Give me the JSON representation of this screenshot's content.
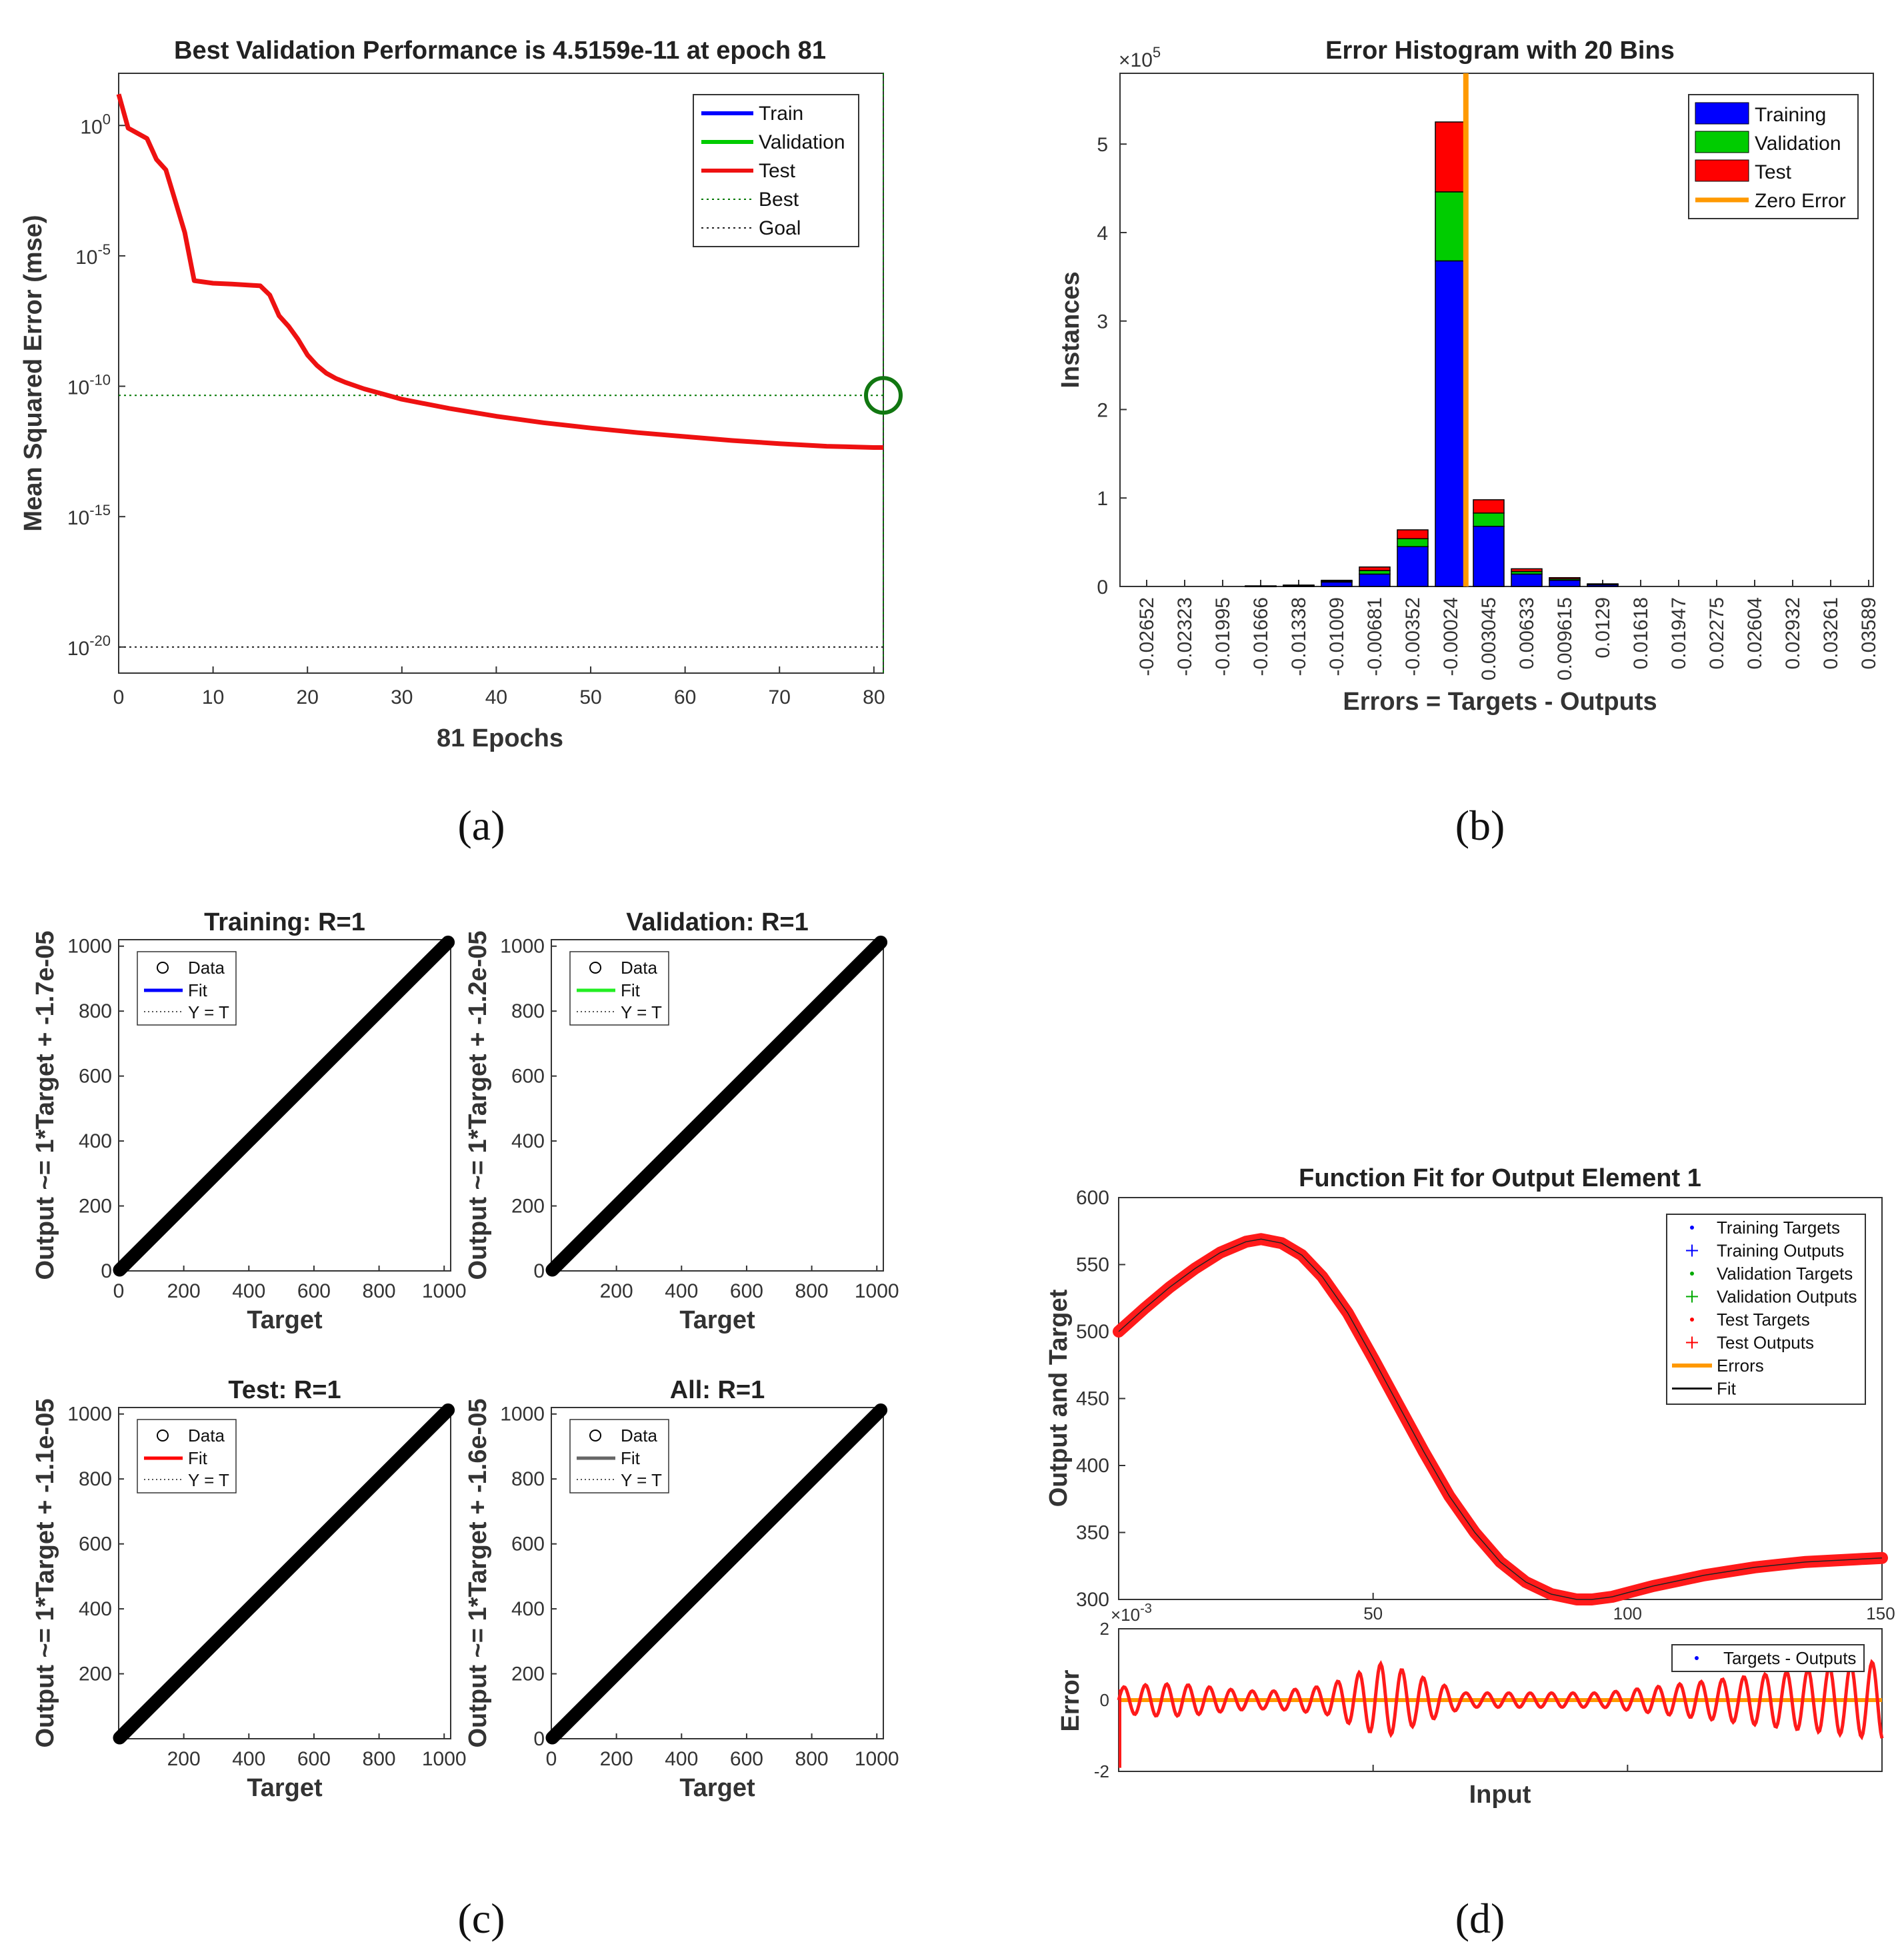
{
  "captions": {
    "a": "(a)",
    "b": "(b)",
    "c": "(c)",
    "d": "(d)"
  },
  "chart_data": [
    {
      "id": "a",
      "type": "line",
      "title": "Best Validation Performance is 4.5159e-11 at epoch 81",
      "xlabel": "81 Epochs",
      "ylabel": "Mean Squared Error  (mse)",
      "yscale": "log",
      "xlim": [
        0,
        81
      ],
      "ylim_exp": [
        -21,
        2
      ],
      "xticks": [
        0,
        10,
        20,
        30,
        40,
        50,
        60,
        70,
        80
      ],
      "yticks": [
        "10",
        "10",
        "10",
        "10",
        "10"
      ],
      "ytick_exps": [
        "0",
        "-5",
        "-10",
        "-15",
        "-20"
      ],
      "ytick_vals": [
        0,
        -5,
        -10,
        -15,
        -20
      ],
      "series": [
        {
          "name": "Train",
          "color": "#0000ff"
        },
        {
          "name": "Validation",
          "color": "#00cc00"
        },
        {
          "name": "Test",
          "color": "#ee1111",
          "epochs": [
            0,
            1,
            2,
            3,
            4,
            5,
            6,
            7,
            8,
            10,
            12,
            15,
            16,
            17,
            18,
            19,
            20,
            21,
            22,
            23,
            24,
            26,
            28,
            30,
            35,
            40,
            45,
            50,
            55,
            60,
            65,
            70,
            75,
            80,
            81
          ],
          "log10_mse": [
            1.2,
            -0.1,
            -0.3,
            -0.5,
            -1.3,
            -1.7,
            -2.9,
            -4.1,
            -5.95,
            -6.05,
            -6.08,
            -6.15,
            -6.5,
            -7.3,
            -7.7,
            -8.2,
            -8.8,
            -9.2,
            -9.5,
            -9.7,
            -9.85,
            -10.1,
            -10.3,
            -10.5,
            -10.85,
            -11.15,
            -11.4,
            -11.6,
            -11.78,
            -11.93,
            -12.08,
            -12.2,
            -12.3,
            -12.35,
            -12.35
          ]
        }
      ],
      "best": {
        "epoch": 81,
        "log10_mse": -10.35,
        "label": "Best"
      },
      "goal": {
        "log10_mse": -20,
        "label": "Goal"
      },
      "legend": [
        "Train",
        "Validation",
        "Test",
        "Best",
        "Goal"
      ]
    },
    {
      "id": "b",
      "type": "bar",
      "title": "Error Histogram with 20 Bins",
      "xlabel": "Errors = Targets - Outputs",
      "ylabel": "Instances",
      "exponent_label": "×10",
      "exponent_power": "5",
      "ylim": [
        0,
        5.8
      ],
      "yticks": [
        0,
        1,
        2,
        3,
        4,
        5
      ],
      "categories": [
        "-0.02652",
        "-0.02323",
        "-0.01995",
        "-0.01666",
        "-0.01338",
        "-0.01009",
        "-0.00681",
        "-0.00352",
        "-0.00024",
        "0.003045",
        "0.00633",
        "0.009615",
        "0.0129",
        "0.01618",
        "0.01947",
        "0.02275",
        "0.02604",
        "0.02932",
        "0.03261",
        "0.03589"
      ],
      "series": [
        {
          "name": "Training",
          "color": "#0000ff",
          "values": [
            0,
            0,
            0,
            0.005,
            0.01,
            0.05,
            0.14,
            0.45,
            3.68,
            0.68,
            0.14,
            0.07,
            0.02,
            0,
            0,
            0,
            0,
            0,
            0,
            0
          ]
        },
        {
          "name": "Validation",
          "color": "#00cc00",
          "values": [
            0,
            0,
            0,
            0.001,
            0.003,
            0.01,
            0.04,
            0.09,
            0.78,
            0.15,
            0.03,
            0.015,
            0.005,
            0,
            0,
            0,
            0,
            0,
            0,
            0
          ]
        },
        {
          "name": "Test",
          "color": "#ff0000",
          "values": [
            0,
            0,
            0,
            0.001,
            0.003,
            0.01,
            0.04,
            0.1,
            0.79,
            0.15,
            0.03,
            0.015,
            0.005,
            0,
            0,
            0,
            0,
            0,
            0,
            0
          ]
        }
      ],
      "zero_error": {
        "name": "Zero Error",
        "color": "#ff9900",
        "bin_position": 8.4
      },
      "legend": [
        "Training",
        "Validation",
        "Test",
        "Zero Error"
      ]
    },
    {
      "id": "c",
      "type": "scatter",
      "panels": [
        {
          "title": "Training: R=1",
          "ylabel": "Output ~= 1*Target + -1.7e-05",
          "xlabel": "Target",
          "fit_color": "#0000ff",
          "xticks": [
            0,
            200,
            400,
            600,
            800,
            1000
          ],
          "yticks": [
            0,
            200,
            400,
            600,
            800,
            1000
          ],
          "xlim": [
            0,
            1020
          ],
          "ylim": [
            0,
            1020
          ]
        },
        {
          "title": "Validation: R=1",
          "ylabel": "Output ~= 1*Target + -1.2e-05",
          "xlabel": "Target",
          "fit_color": "#22ee22",
          "xticks": [
            200,
            400,
            600,
            800,
            1000
          ],
          "yticks": [
            0,
            200,
            400,
            600,
            800,
            1000
          ],
          "xlim": [
            0,
            1020
          ],
          "ylim": [
            0,
            1020
          ]
        },
        {
          "title": "Test: R=1",
          "ylabel": "Output ~= 1*Target + -1.1e-05",
          "xlabel": "Target",
          "fit_color": "#ff0000",
          "xticks": [
            200,
            400,
            600,
            800,
            1000
          ],
          "yticks": [
            200,
            400,
            600,
            800,
            1000
          ],
          "xlim": [
            0,
            1020
          ],
          "ylim": [
            0,
            1020
          ]
        },
        {
          "title": "All: R=1",
          "ylabel": "Output ~= 1*Target + -1.6e-05",
          "xlabel": "Target",
          "fit_color": "#666666",
          "xticks": [
            0,
            200,
            400,
            600,
            800,
            1000
          ],
          "yticks": [
            0,
            200,
            400,
            600,
            800,
            1000
          ],
          "xlim": [
            0,
            1020
          ],
          "ylim": [
            0,
            1020
          ]
        }
      ],
      "legend": [
        "Data",
        "Fit",
        "Y = T"
      ]
    },
    {
      "id": "d",
      "type": "line",
      "title": "Function Fit for Output Element 1",
      "ylabel": "Output and Target",
      "xlim": [
        0,
        150
      ],
      "ylim": [
        300,
        600
      ],
      "yticks": [
        300,
        350,
        400,
        450,
        500,
        550,
        600
      ],
      "xticks": [
        50,
        100,
        150
      ],
      "curve_x": [
        0,
        5,
        10,
        15,
        20,
        25,
        28,
        32,
        36,
        40,
        45,
        50,
        55,
        60,
        65,
        70,
        75,
        80,
        85,
        90,
        93,
        97,
        100,
        105,
        110,
        115,
        120,
        125,
        130,
        135,
        140,
        145,
        150
      ],
      "curve_y": [
        500,
        517,
        533,
        547,
        559,
        567,
        569,
        566,
        557,
        541,
        514,
        480,
        445,
        410,
        377,
        350,
        328,
        313,
        304,
        300,
        300,
        302,
        305,
        310,
        314,
        318,
        321,
        324,
        326,
        328,
        329,
        330,
        331
      ],
      "legend": [
        "Training Targets",
        "Training Outputs",
        "Validation Targets",
        "Validation Outputs",
        "Test Targets",
        "Test Outputs",
        "Errors",
        "Fit"
      ],
      "error_panel": {
        "ylabel": "Error",
        "xlabel": "Input",
        "exponent_label": "×10",
        "exponent_power": "-3",
        "ylim": [
          -2,
          2
        ],
        "yticks": [
          -2,
          0,
          2
        ],
        "legend": [
          "Targets - Outputs"
        ]
      }
    }
  ]
}
